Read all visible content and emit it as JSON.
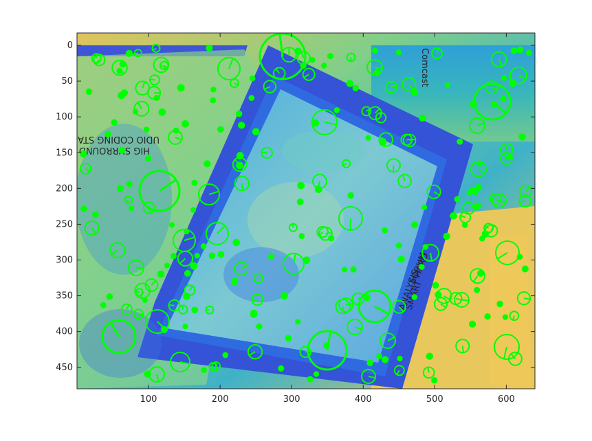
{
  "figure": {
    "x_axis": {
      "range": [
        0,
        640
      ],
      "ticks": [
        "100",
        "200",
        "300",
        "400",
        "500",
        "600"
      ]
    },
    "y_axis": {
      "range": [
        0,
        480
      ],
      "reversed": true,
      "ticks": [
        "0",
        "50",
        "100",
        "150",
        "200",
        "250",
        "300",
        "350",
        "400",
        "450"
      ]
    },
    "grid": false,
    "image_colors": [
      "#3b5bdc",
      "#3f8fe6",
      "#39bcc0",
      "#7ccf8a",
      "#e5c95a"
    ],
    "marker_color": "#00ff00",
    "marker_type": "circle-with-orientation-line",
    "mirrored_text_visible": [
      "HIG SURROUND STR",
      "UDIO CODING STA"
    ],
    "text_visible": [
      "Comcast",
      "HARD",
      "ANALYSIS",
      "SMART",
      "FORUM"
    ]
  }
}
